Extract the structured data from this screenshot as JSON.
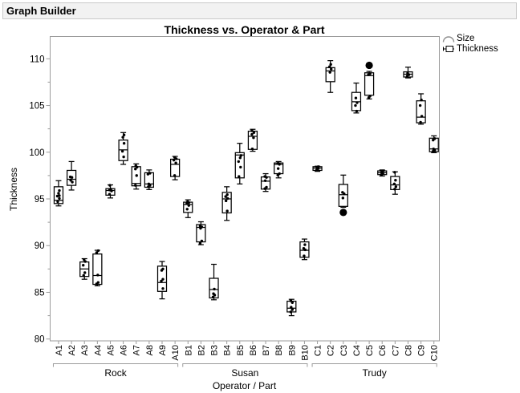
{
  "window": {
    "title": "Graph Builder"
  },
  "legend": {
    "size_label": "Size",
    "thickness_label": "Thickness"
  },
  "chart_data": {
    "type": "box",
    "title": "Thickness vs. Operator & Part",
    "xlabel": "Operator / Part",
    "ylabel": "Thickness",
    "ylim": [
      79.8,
      112.4
    ],
    "yticks_major": [
      80,
      85,
      90,
      95,
      100,
      105,
      110
    ],
    "yticks_minor": [
      82.5,
      87.5,
      92.5,
      97.5,
      102.5,
      107.5
    ],
    "grid": false,
    "legend_position": "right-top",
    "groups": [
      {
        "name": "Rock",
        "parts": [
          {
            "label": "A1",
            "low": 94.25,
            "q1": 94.5,
            "med": 94.85,
            "q3": 96.3,
            "high": 96.95,
            "pts": [
              [
                94.7,
                -1
              ],
              [
                95.05,
                1
              ],
              [
                95.3,
                -1.5
              ],
              [
                95.35,
                1
              ],
              [
                95.6,
                0
              ],
              [
                95.9,
                1
              ]
            ]
          },
          {
            "label": "A2",
            "low": 95.95,
            "q1": 96.45,
            "med": 97.1,
            "q3": 98.05,
            "high": 99.0,
            "pts": [
              [
                96.8,
                1
              ],
              [
                97.0,
                -1
              ],
              [
                97.3,
                0.5
              ],
              [
                97.35,
                -1.5
              ]
            ]
          },
          {
            "label": "A3",
            "low": 86.4,
            "q1": 86.7,
            "med": 87.5,
            "q3": 88.25,
            "high": 88.6,
            "pts": [
              [
                86.8,
                -1
              ],
              [
                87.1,
                0.5
              ],
              [
                87.9,
                -1.5
              ],
              [
                88.3,
                1
              ],
              [
                88.5,
                -0.5
              ]
            ]
          },
          {
            "label": "A4",
            "low": 85.7,
            "q1": 85.85,
            "med": 86.8,
            "q3": 89.1,
            "high": 89.5,
            "pts": [
              [
                85.9,
                -1
              ],
              [
                86.05,
                1
              ],
              [
                86.85,
                0.5
              ],
              [
                89.25,
                -1
              ],
              [
                89.45,
                1
              ]
            ]
          },
          {
            "label": "A5",
            "low": 95.1,
            "q1": 95.4,
            "med": 95.9,
            "q3": 96.1,
            "high": 96.5,
            "pts": [
              [
                95.5,
                -1
              ],
              [
                95.85,
                1.5
              ],
              [
                95.95,
                -1
              ],
              [
                96.05,
                0.5
              ],
              [
                96.45,
                -0.5
              ]
            ]
          },
          {
            "label": "A6",
            "low": 98.7,
            "q1": 99.1,
            "med": 100.25,
            "q3": 101.3,
            "high": 102.1,
            "pts": [
              [
                99.5,
                0.5
              ],
              [
                100.1,
                -1
              ],
              [
                100.95,
                1
              ],
              [
                101.6,
                -0.5
              ],
              [
                101.85,
                1
              ]
            ]
          },
          {
            "label": "A7",
            "low": 96.05,
            "q1": 96.4,
            "med": 96.65,
            "q3": 98.45,
            "high": 98.75,
            "pts": [
              [
                96.45,
                -1
              ],
              [
                97.5,
                0.5
              ],
              [
                98.2,
                -1
              ],
              [
                98.4,
                1
              ],
              [
                98.55,
                -0.5
              ]
            ]
          },
          {
            "label": "A8",
            "low": 96.0,
            "q1": 96.25,
            "med": 96.6,
            "q3": 97.8,
            "high": 98.1,
            "pts": [
              [
                96.3,
                -1
              ],
              [
                96.45,
                1
              ],
              [
                96.6,
                -0.5
              ],
              [
                97.65,
                -1.5
              ],
              [
                97.75,
                1
              ]
            ]
          },
          {
            "label": "A9",
            "low": 84.3,
            "q1": 85.1,
            "med": 86.05,
            "q3": 87.8,
            "high": 88.3,
            "pts": [
              [
                85.4,
                1
              ],
              [
                86.2,
                -1
              ],
              [
                86.4,
                1
              ],
              [
                87.35,
                -0.5
              ],
              [
                87.5,
                1
              ]
            ]
          },
          {
            "label": "A10",
            "low": 97.05,
            "q1": 97.4,
            "med": 98.7,
            "q3": 99.25,
            "high": 99.55,
            "pts": [
              [
                97.5,
                -0.5
              ],
              [
                98.85,
                1
              ],
              [
                99.15,
                -1.5
              ],
              [
                99.3,
                1.5
              ],
              [
                99.45,
                -0.5
              ]
            ]
          }
        ]
      },
      {
        "name": "Susan",
        "parts": [
          {
            "label": "B1",
            "low": 93.0,
            "q1": 93.55,
            "med": 94.4,
            "q3": 94.65,
            "high": 94.9,
            "pts": [
              [
                93.9,
                -1
              ],
              [
                94.3,
                1
              ],
              [
                94.5,
                -1.5
              ],
              [
                94.6,
                1
              ],
              [
                94.7,
                -0.5
              ]
            ]
          },
          {
            "label": "B2",
            "low": 90.1,
            "q1": 90.4,
            "med": 91.95,
            "q3": 92.25,
            "high": 92.55,
            "pts": [
              [
                90.25,
                -1
              ],
              [
                90.5,
                1
              ],
              [
                91.85,
                -0.5
              ],
              [
                92.0,
                1
              ],
              [
                92.1,
                -1
              ]
            ]
          },
          {
            "label": "B3",
            "low": 84.2,
            "q1": 84.4,
            "med": 85.3,
            "q3": 86.5,
            "high": 88.0,
            "pts": [
              [
                84.5,
                -1
              ],
              [
                84.7,
                1
              ],
              [
                84.85,
                -0.5
              ],
              [
                85.35,
                0.5
              ]
            ]
          },
          {
            "label": "B4",
            "low": 92.7,
            "q1": 93.5,
            "med": 95.0,
            "q3": 95.7,
            "high": 96.3,
            "pts": [
              [
                93.7,
                0.5
              ],
              [
                94.8,
                -1
              ],
              [
                95.05,
                1
              ],
              [
                95.25,
                -1.5
              ],
              [
                95.45,
                0.5
              ]
            ]
          },
          {
            "label": "B5",
            "low": 96.6,
            "q1": 97.25,
            "med": 99.7,
            "q3": 99.95,
            "high": 100.95,
            "pts": [
              [
                97.4,
                -1
              ],
              [
                98.4,
                1
              ],
              [
                99.0,
                -1.5
              ],
              [
                99.4,
                0.5
              ],
              [
                99.65,
                1.5
              ]
            ]
          },
          {
            "label": "B6",
            "low": 100.1,
            "q1": 100.3,
            "med": 101.7,
            "q3": 102.25,
            "high": 102.45,
            "pts": [
              [
                100.35,
                -0.5
              ],
              [
                101.55,
                1
              ],
              [
                101.9,
                -1
              ],
              [
                102.1,
                1.5
              ],
              [
                102.3,
                -1
              ]
            ]
          },
          {
            "label": "B7",
            "low": 95.8,
            "q1": 96.05,
            "med": 96.9,
            "q3": 97.35,
            "high": 97.7,
            "pts": [
              [
                96.1,
                -1
              ],
              [
                96.25,
                1
              ],
              [
                96.95,
                -0.5
              ],
              [
                97.3,
                1
              ],
              [
                97.4,
                -1
              ]
            ]
          },
          {
            "label": "B8",
            "low": 97.25,
            "q1": 97.7,
            "med": 98.7,
            "q3": 98.85,
            "high": 99.0,
            "pts": [
              [
                97.55,
                -1
              ],
              [
                97.7,
                1
              ],
              [
                98.25,
                -0.5
              ],
              [
                98.7,
                1
              ],
              [
                98.8,
                -1
              ]
            ]
          },
          {
            "label": "B9",
            "low": 82.5,
            "q1": 82.9,
            "med": 83.3,
            "q3": 84.05,
            "high": 84.25,
            "pts": [
              [
                82.9,
                -1
              ],
              [
                83.15,
                1
              ],
              [
                83.4,
                -0.5
              ],
              [
                83.9,
                1
              ],
              [
                84.1,
                -1
              ]
            ]
          },
          {
            "label": "B10",
            "low": 88.5,
            "q1": 88.75,
            "med": 89.5,
            "q3": 90.4,
            "high": 90.7,
            "pts": [
              [
                88.9,
                -0.5
              ],
              [
                89.55,
                1
              ],
              [
                89.7,
                -1
              ],
              [
                90.1,
                0.5
              ]
            ]
          }
        ]
      },
      {
        "name": "Trudy",
        "parts": [
          {
            "label": "C1",
            "low": 97.95,
            "q1": 98.05,
            "med": 98.3,
            "q3": 98.45,
            "high": 98.5,
            "pts": [
              [
                98.1,
                -1
              ],
              [
                98.25,
                1
              ],
              [
                98.35,
                -0.5
              ],
              [
                98.45,
                1
              ]
            ]
          },
          {
            "label": "C2",
            "low": 106.4,
            "q1": 107.55,
            "med": 108.7,
            "q3": 109.05,
            "high": 109.8,
            "pts": [
              [
                108.55,
                -0.5
              ],
              [
                108.9,
                1
              ],
              [
                109.15,
                -1
              ],
              [
                109.4,
                0.5
              ]
            ]
          },
          {
            "label": "C3",
            "low": 94.1,
            "q1": 94.2,
            "med": 95.45,
            "q3": 96.55,
            "high": 97.55,
            "pts": [
              [
                95.1,
                -0.5
              ],
              [
                95.55,
                1
              ],
              [
                95.7,
                -1
              ]
            ],
            "big": [
              [
                93.55,
                0
              ]
            ]
          },
          {
            "label": "C4",
            "low": 104.2,
            "q1": 104.45,
            "med": 105.4,
            "q3": 106.4,
            "high": 107.4,
            "pts": [
              [
                104.4,
                0.5
              ],
              [
                105.0,
                -1
              ],
              [
                105.3,
                1
              ],
              [
                105.8,
                -0.5
              ]
            ]
          },
          {
            "label": "C5",
            "low": 105.7,
            "q1": 106.1,
            "med": 108.2,
            "q3": 108.5,
            "high": 108.65,
            "pts": [
              [
                105.85,
                -0.5
              ],
              [
                106.0,
                1
              ],
              [
                108.3,
                -1
              ],
              [
                108.4,
                1
              ]
            ],
            "big": [
              [
                109.3,
                0
              ]
            ]
          },
          {
            "label": "C6",
            "low": 97.45,
            "q1": 97.6,
            "med": 97.8,
            "q3": 98.0,
            "high": 98.1,
            "pts": [
              [
                97.6,
                -1
              ],
              [
                97.75,
                1
              ],
              [
                97.9,
                -0.5
              ],
              [
                98.0,
                1
              ]
            ]
          },
          {
            "label": "C7",
            "low": 95.5,
            "q1": 96.0,
            "med": 96.5,
            "q3": 97.4,
            "high": 97.9,
            "pts": [
              [
                96.05,
                -0.5
              ],
              [
                96.3,
                1
              ],
              [
                96.6,
                -1
              ],
              [
                97.0,
                0.5
              ],
              [
                97.85,
                -0.5
              ]
            ]
          },
          {
            "label": "C8",
            "low": 107.95,
            "q1": 108.05,
            "med": 108.35,
            "q3": 108.6,
            "high": 109.1,
            "pts": [
              [
                108.15,
                -1
              ],
              [
                108.3,
                1
              ],
              [
                108.45,
                -0.5
              ]
            ]
          },
          {
            "label": "C9",
            "low": 103.0,
            "q1": 103.15,
            "med": 103.75,
            "q3": 105.5,
            "high": 106.25,
            "pts": [
              [
                103.2,
                -0.5
              ],
              [
                103.85,
                1
              ],
              [
                105.0,
                -1
              ],
              [
                105.6,
                0.5
              ]
            ]
          },
          {
            "label": "C10",
            "low": 99.95,
            "q1": 100.05,
            "med": 100.35,
            "q3": 101.5,
            "high": 101.75,
            "pts": [
              [
                100.1,
                -1
              ],
              [
                100.2,
                1
              ],
              [
                100.35,
                -0.5
              ],
              [
                101.3,
                -1
              ],
              [
                101.45,
                1
              ]
            ]
          }
        ]
      }
    ]
  }
}
